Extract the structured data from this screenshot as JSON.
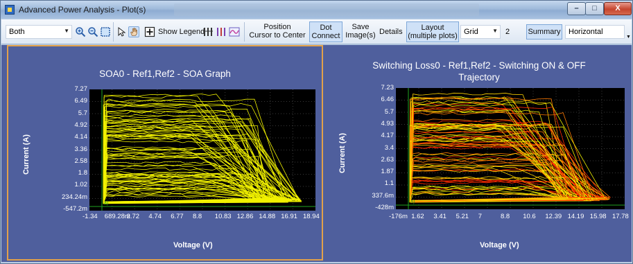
{
  "window": {
    "title": "Advanced Power Analysis - Plot(s)",
    "minimize": "–",
    "maximize": "□",
    "close": "X"
  },
  "toolbar": {
    "source_select": "Both",
    "show_legend": "Show Legend",
    "position_cursor_line1": "Position",
    "position_cursor_line2": "Cursor to Center",
    "dot_connect_line1": "Dot",
    "dot_connect_line2": "Connect",
    "save_images_line1": "Save",
    "save_images_line2": "Image(s)",
    "details": "Details",
    "layout_line1": "Layout",
    "layout_line2": "(multiple plots)",
    "grid_select": "Grid",
    "grid_count": "2",
    "summary": "Summary",
    "orientation_select": "Horizontal",
    "icons": [
      "zoom-in-icon",
      "zoom-out-icon",
      "zoom-fit-icon",
      "pointer-icon",
      "hand-pan-icon",
      "cursor-crosshair-icon",
      "bars-icon",
      "bars-purple-icon",
      "waveform-icon"
    ]
  },
  "plots": [
    {
      "title_line1": "SOA0 - Ref1,Ref2 - SOA Graph",
      "title_line2": "",
      "ylabel": "Current (A)",
      "xlabel": "Voltage (V)",
      "yticks": [
        "7.27",
        "6.49",
        "5.7",
        "4.92",
        "4.14",
        "3.36",
        "2.58",
        "1.8",
        "1.02",
        "234.24m",
        "-547.2m"
      ],
      "xticks": [
        "-1.34",
        "689.28m",
        "2.72",
        "4.74",
        "6.77",
        "8.8",
        "10.83",
        "12.86",
        "14.88",
        "16.91",
        "18.94"
      ],
      "marker_label": "a)",
      "trace_color": "#f2f200",
      "selected": true
    },
    {
      "title_line1": "Switching Loss0 - Ref1,Ref2 - Switching ON & OFF",
      "title_line2": "Trajectory",
      "ylabel": "Current (A)",
      "xlabel": "Voltage (V)",
      "yticks": [
        "7.23",
        "6.46",
        "5.7",
        "4.93",
        "4.17",
        "3.4",
        "2.63",
        "1.87",
        "1.1",
        "337.6m",
        "-428m"
      ],
      "xticks": [
        "-176m",
        "1.62",
        "3.41",
        "5.21",
        "7",
        "8.8",
        "10.6",
        "12.39",
        "14.19",
        "15.98",
        "17.78"
      ],
      "marker_label": "a)",
      "trace_colors": [
        "#ff2a00",
        "#ff7a00",
        "#ffd400",
        "#f0f000"
      ],
      "selected": false
    }
  ]
}
